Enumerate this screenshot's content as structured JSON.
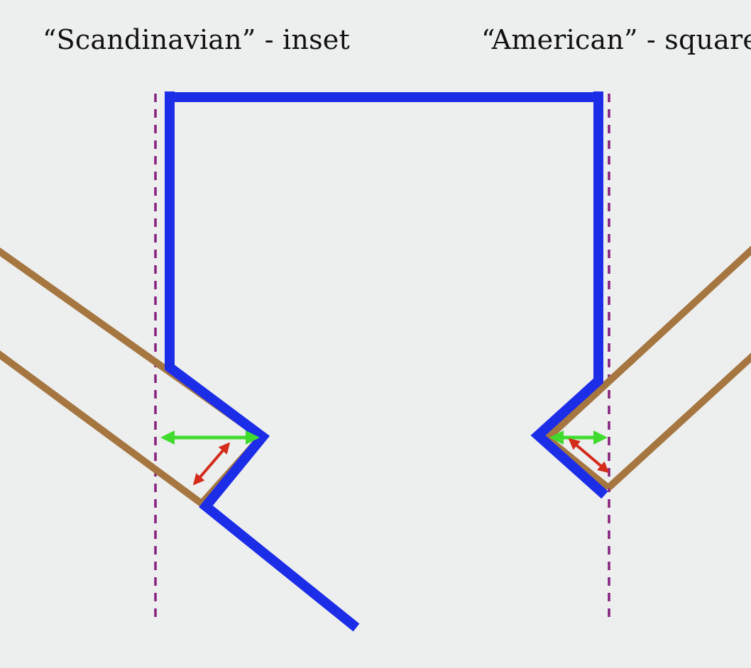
{
  "labels": {
    "left": "“Scandinavian” - inset",
    "right": "“American” - square"
  },
  "colors": {
    "background": "#edeeee",
    "wall_outline": "#1c2de8",
    "rafter": "#a57640",
    "guide_line": "#87207e",
    "horizontal_arrow": "#3fdc2e",
    "diagonal_arrow": "#d42b1a"
  }
}
